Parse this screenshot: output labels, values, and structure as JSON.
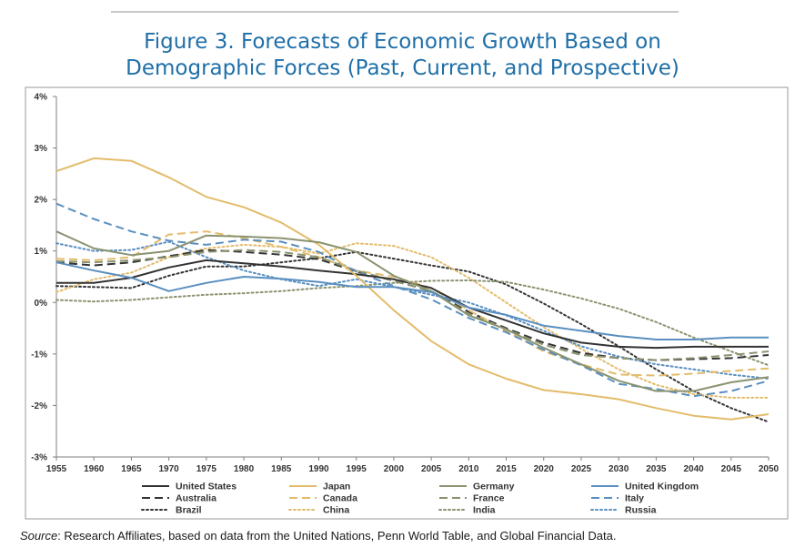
{
  "figure": {
    "title_line1": "Figure 3. Forecasts of Economic Growth Based on",
    "title_line2": "Demographic Forces (Past, Current, and Prospective)",
    "source_label": "Source",
    "source_text": ": Research Affiliates, based on data from the United Nations, Penn World Table, and Global Financial Data."
  },
  "chart_data": {
    "type": "line",
    "title": "",
    "xlabel": "",
    "ylabel": "",
    "x": [
      1955,
      1960,
      1965,
      1970,
      1975,
      1980,
      1985,
      1990,
      1995,
      2000,
      2005,
      2010,
      2015,
      2020,
      2025,
      2030,
      2035,
      2040,
      2045,
      2050
    ],
    "ylim": [
      -3,
      4
    ],
    "yticks": [
      -3,
      -2,
      -1,
      0,
      1,
      2,
      3,
      4
    ],
    "ytick_labels": [
      "-3%",
      "-2%",
      "-1%",
      "0%",
      "1%",
      "2%",
      "3%",
      "4%"
    ],
    "xtick_labels": [
      "1955",
      "1960",
      "1965",
      "1970",
      "1975",
      "1980",
      "1985",
      "1990",
      "1995",
      "2000",
      "2005",
      "2010",
      "2015",
      "2020",
      "2025",
      "2030",
      "2035",
      "2040",
      "2045",
      "2050"
    ],
    "grid": false,
    "legend_position": "bottom",
    "series": [
      {
        "name": "United States",
        "color": "#333333",
        "style": "solid",
        "width": 2,
        "values": [
          0.38,
          0.38,
          0.48,
          0.68,
          0.82,
          0.76,
          0.7,
          0.62,
          0.55,
          0.45,
          0.28,
          -0.1,
          -0.35,
          -0.6,
          -0.78,
          -0.86,
          -0.88,
          -0.86,
          -0.86,
          -0.86
        ]
      },
      {
        "name": "Japan",
        "color": "#e3bc6b",
        "style": "solid",
        "width": 2,
        "values": [
          2.55,
          2.8,
          2.75,
          2.43,
          2.05,
          1.85,
          1.55,
          1.12,
          0.52,
          -0.15,
          -0.75,
          -1.2,
          -1.48,
          -1.7,
          -1.78,
          -1.88,
          -2.05,
          -2.2,
          -2.27,
          -2.17
        ]
      },
      {
        "name": "Germany",
        "color": "#8a9370",
        "style": "solid",
        "width": 2,
        "values": [
          1.38,
          1.05,
          0.92,
          1.0,
          1.3,
          1.28,
          1.25,
          1.17,
          0.98,
          0.52,
          0.22,
          -0.25,
          -0.52,
          -0.88,
          -1.2,
          -1.52,
          -1.72,
          -1.72,
          -1.55,
          -1.45
        ]
      },
      {
        "name": "United Kingdom",
        "color": "#5a8fc0",
        "style": "solid",
        "width": 2,
        "values": [
          0.78,
          0.62,
          0.48,
          0.22,
          0.38,
          0.5,
          0.46,
          0.4,
          0.3,
          0.3,
          0.2,
          -0.1,
          -0.24,
          -0.45,
          -0.55,
          -0.65,
          -0.72,
          -0.72,
          -0.68,
          -0.68
        ]
      },
      {
        "name": "Australia",
        "color": "#333333",
        "style": "longdash",
        "width": 2,
        "values": [
          0.78,
          0.72,
          0.78,
          0.9,
          1.02,
          0.98,
          0.93,
          0.84,
          0.6,
          0.42,
          0.22,
          -0.18,
          -0.5,
          -0.78,
          -0.98,
          -1.08,
          -1.12,
          -1.1,
          -1.08,
          -1.02
        ]
      },
      {
        "name": "Canada",
        "color": "#e3bc6b",
        "style": "longdash",
        "width": 2,
        "values": [
          0.85,
          0.82,
          0.88,
          1.32,
          1.38,
          1.25,
          1.08,
          0.88,
          0.62,
          0.5,
          0.28,
          -0.15,
          -0.55,
          -0.95,
          -1.2,
          -1.4,
          -1.42,
          -1.38,
          -1.33,
          -1.28
        ]
      },
      {
        "name": "France",
        "color": "#8a9370",
        "style": "longdash",
        "width": 2,
        "values": [
          0.8,
          0.78,
          0.82,
          0.88,
          0.98,
          1.02,
          0.98,
          0.88,
          0.62,
          0.42,
          0.22,
          -0.22,
          -0.52,
          -0.82,
          -1.02,
          -1.08,
          -1.12,
          -1.08,
          -1.02,
          -0.95
        ]
      },
      {
        "name": "Italy",
        "color": "#5a8fc0",
        "style": "longdash",
        "width": 2,
        "values": [
          1.92,
          1.62,
          1.38,
          1.2,
          1.12,
          1.22,
          1.18,
          0.98,
          0.6,
          0.32,
          0.06,
          -0.3,
          -0.58,
          -0.92,
          -1.22,
          -1.58,
          -1.68,
          -1.82,
          -1.72,
          -1.52
        ]
      },
      {
        "name": "Brazil",
        "color": "#333333",
        "style": "dotted",
        "width": 2,
        "values": [
          0.32,
          0.3,
          0.28,
          0.52,
          0.7,
          0.7,
          0.78,
          0.86,
          0.98,
          0.85,
          0.72,
          0.6,
          0.35,
          -0.02,
          -0.42,
          -0.85,
          -1.3,
          -1.72,
          -2.05,
          -2.32
        ]
      },
      {
        "name": "China",
        "color": "#e3bc6b",
        "style": "dotted",
        "width": 2,
        "values": [
          0.2,
          0.45,
          0.58,
          0.88,
          1.05,
          1.12,
          1.08,
          0.95,
          1.15,
          1.1,
          0.88,
          0.48,
          0.0,
          -0.48,
          -0.9,
          -1.3,
          -1.6,
          -1.78,
          -1.85,
          -1.85
        ]
      },
      {
        "name": "India",
        "color": "#8a9370",
        "style": "dotted",
        "width": 2,
        "values": [
          0.05,
          0.02,
          0.05,
          0.1,
          0.15,
          0.18,
          0.22,
          0.28,
          0.32,
          0.38,
          0.42,
          0.43,
          0.4,
          0.25,
          0.08,
          -0.12,
          -0.38,
          -0.68,
          -0.95,
          -1.22
        ]
      },
      {
        "name": "Russia",
        "color": "#5a8fc0",
        "style": "dotted",
        "width": 2,
        "values": [
          1.15,
          1.0,
          1.02,
          1.18,
          0.88,
          0.62,
          0.45,
          0.32,
          0.45,
          0.3,
          0.15,
          0.0,
          -0.25,
          -0.55,
          -0.85,
          -1.05,
          -1.2,
          -1.3,
          -1.4,
          -1.48
        ]
      }
    ]
  }
}
